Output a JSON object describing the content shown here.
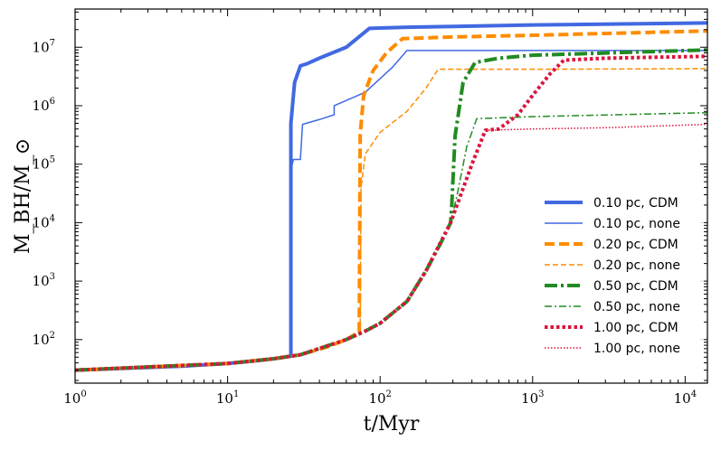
{
  "chart_data": {
    "type": "line",
    "title": "",
    "xlabel": "t/Myr",
    "ylabel": "M_BH/M_⊙",
    "xscale": "log",
    "yscale": "log",
    "xlim": [
      1,
      14000
    ],
    "ylim": [
      18,
      45000000
    ],
    "x_ticks": [
      {
        "value": 1,
        "base": "10",
        "exp": "0"
      },
      {
        "value": 10,
        "base": "10",
        "exp": "1"
      },
      {
        "value": 100,
        "base": "10",
        "exp": "2"
      },
      {
        "value": 1000,
        "base": "10",
        "exp": "3"
      },
      {
        "value": 10000,
        "base": "10",
        "exp": "4"
      }
    ],
    "y_ticks": [
      {
        "value": 100,
        "base": "10",
        "exp": "2"
      },
      {
        "value": 1000,
        "base": "10",
        "exp": "3"
      },
      {
        "value": 10000,
        "base": "10",
        "exp": "4"
      },
      {
        "value": 100000,
        "base": "10",
        "exp": "5"
      },
      {
        "value": 1000000,
        "base": "10",
        "exp": "6"
      },
      {
        "value": 10000000,
        "base": "10",
        "exp": "7"
      }
    ],
    "legend_position": "lower-right",
    "series": [
      {
        "name": "0.10 pc, CDM",
        "color": "#4169e1",
        "style": "solid",
        "weight": "thick",
        "points": [
          [
            1,
            30
          ],
          [
            5,
            35
          ],
          [
            10,
            39
          ],
          [
            15,
            43
          ],
          [
            20,
            47
          ],
          [
            26,
            52
          ],
          [
            26,
            500000
          ],
          [
            27.5,
            2500000
          ],
          [
            30,
            4800000
          ],
          [
            33,
            5200000
          ],
          [
            40,
            6500000
          ],
          [
            60,
            10000000
          ],
          [
            85,
            21000000
          ],
          [
            150,
            22000000
          ],
          [
            1000,
            24000000
          ],
          [
            14000,
            26000000
          ]
        ]
      },
      {
        "name": "0.10 pc, none",
        "color": "#4169e1",
        "style": "solid",
        "weight": "thin",
        "points": [
          [
            26,
            52
          ],
          [
            26.3,
            90000
          ],
          [
            27,
            120000
          ],
          [
            30,
            120000
          ],
          [
            31,
            480000
          ],
          [
            40,
            580000
          ],
          [
            50,
            700000
          ],
          [
            50,
            1000000
          ],
          [
            80,
            1700000
          ],
          [
            120,
            4500000
          ],
          [
            150,
            8800000
          ],
          [
            1000,
            8800000
          ],
          [
            14000,
            8800000
          ]
        ]
      },
      {
        "name": "0.20 pc, CDM",
        "color": "#ff8c00",
        "style": "dashed",
        "weight": "thick",
        "points": [
          [
            1,
            30
          ],
          [
            10,
            39
          ],
          [
            20,
            47
          ],
          [
            30,
            55
          ],
          [
            45,
            75
          ],
          [
            60,
            100
          ],
          [
            73,
            135
          ],
          [
            74,
            320000
          ],
          [
            78,
            1500000
          ],
          [
            90,
            4000000
          ],
          [
            110,
            8000000
          ],
          [
            140,
            14000000
          ],
          [
            300,
            15000000
          ],
          [
            1000,
            16000000
          ],
          [
            14000,
            19000000
          ]
        ]
      },
      {
        "name": "0.20 pc, none",
        "color": "#ff8c00",
        "style": "dashed",
        "weight": "thin",
        "points": [
          [
            74,
            135
          ],
          [
            75,
            40000
          ],
          [
            80,
            150000
          ],
          [
            100,
            350000
          ],
          [
            150,
            800000
          ],
          [
            200,
            2000000
          ],
          [
            240,
            4200000
          ],
          [
            1000,
            4200000
          ],
          [
            14000,
            4300000
          ]
        ]
      },
      {
        "name": "0.50 pc, CDM",
        "color": "#228b22",
        "style": "dashdot",
        "weight": "thick",
        "points": [
          [
            1,
            30
          ],
          [
            10,
            39
          ],
          [
            20,
            47
          ],
          [
            30,
            55
          ],
          [
            60,
            100
          ],
          [
            80,
            140
          ],
          [
            100,
            190
          ],
          [
            150,
            450
          ],
          [
            200,
            1500
          ],
          [
            250,
            4500
          ],
          [
            290,
            10000
          ],
          [
            295,
            20000
          ],
          [
            310,
            300000
          ],
          [
            350,
            2500000
          ],
          [
            420,
            5500000
          ],
          [
            600,
            6500000
          ],
          [
            1000,
            7300000
          ],
          [
            14000,
            9000000
          ]
        ]
      },
      {
        "name": "0.50 pc, none",
        "color": "#228b22",
        "style": "dashdot",
        "weight": "thin",
        "points": [
          [
            290,
            10000
          ],
          [
            320,
            30000
          ],
          [
            370,
            200000
          ],
          [
            430,
            600000
          ],
          [
            1000,
            650000
          ],
          [
            14000,
            760000
          ]
        ]
      },
      {
        "name": "1.00 pc, CDM",
        "color": "#dc143c",
        "style": "dotted",
        "weight": "thick",
        "points": [
          [
            1,
            30
          ],
          [
            10,
            39
          ],
          [
            20,
            47
          ],
          [
            30,
            55
          ],
          [
            60,
            100
          ],
          [
            80,
            140
          ],
          [
            100,
            190
          ],
          [
            150,
            450
          ],
          [
            200,
            1500
          ],
          [
            290,
            10000
          ],
          [
            400,
            100000
          ],
          [
            490,
            380000
          ],
          [
            600,
            400000
          ],
          [
            800,
            700000
          ],
          [
            1000,
            1500000
          ],
          [
            1300,
            3500000
          ],
          [
            1600,
            6000000
          ],
          [
            3000,
            6500000
          ],
          [
            14000,
            7000000
          ]
        ]
      },
      {
        "name": "1.00 pc, none",
        "color": "#dc143c",
        "style": "dotted",
        "weight": "thin",
        "points": [
          [
            490,
            380000
          ],
          [
            1000,
            400000
          ],
          [
            3000,
            420000
          ],
          [
            14000,
            480000
          ]
        ]
      }
    ]
  }
}
